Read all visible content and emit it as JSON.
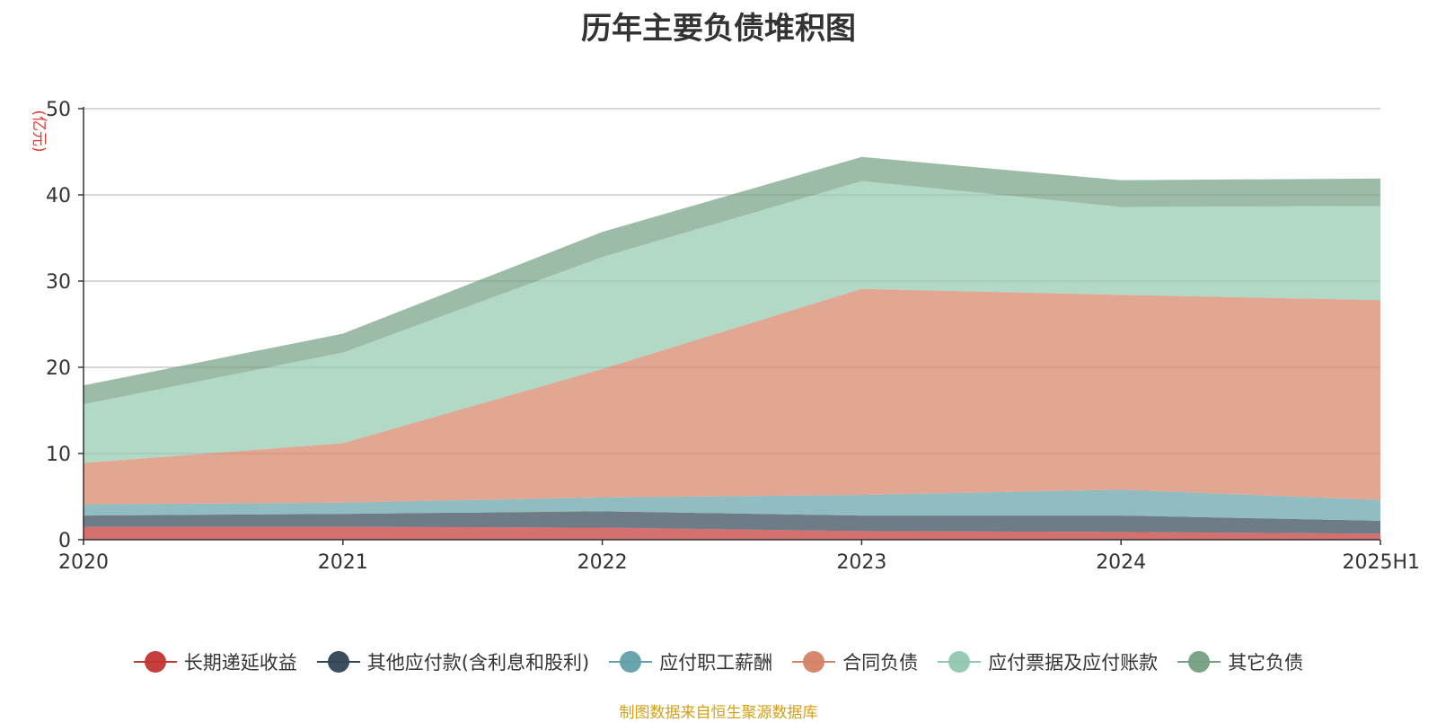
{
  "chart_data": {
    "type": "area",
    "stacked": true,
    "title": "历年主要负债堆积图",
    "ylabel": "(亿元)",
    "xlabel": "",
    "categories": [
      "2020",
      "2021",
      "2022",
      "2023",
      "2024",
      "2025H1"
    ],
    "ylim": [
      0,
      50
    ],
    "yticks": [
      0,
      10,
      20,
      30,
      40,
      50
    ],
    "grid": true,
    "legend_position": "bottom",
    "series": [
      {
        "name": "长期递延收益",
        "color": "#c23531",
        "values": [
          1.5,
          1.5,
          1.4,
          1.0,
          0.9,
          0.7
        ]
      },
      {
        "name": "其他应付款(含利息和股利)",
        "color": "#2f4554",
        "values": [
          1.3,
          1.5,
          1.9,
          1.8,
          1.9,
          1.5
        ]
      },
      {
        "name": "应付职工薪酬",
        "color": "#61a0a8",
        "values": [
          1.3,
          1.3,
          1.6,
          2.4,
          3.0,
          2.4
        ]
      },
      {
        "name": "合同负债",
        "color": "#d48265",
        "values": [
          4.8,
          6.9,
          14.9,
          23.9,
          22.6,
          23.2
        ]
      },
      {
        "name": "应付票据及应付账款",
        "color": "#91c7ae",
        "values": [
          6.8,
          10.5,
          13.0,
          12.5,
          10.2,
          10.9
        ]
      },
      {
        "name": "其它负债",
        "color": "#749f83",
        "values": [
          2.2,
          2.2,
          2.9,
          2.8,
          3.1,
          3.2
        ]
      }
    ]
  },
  "source_note": "制图数据来自恒生聚源数据库"
}
